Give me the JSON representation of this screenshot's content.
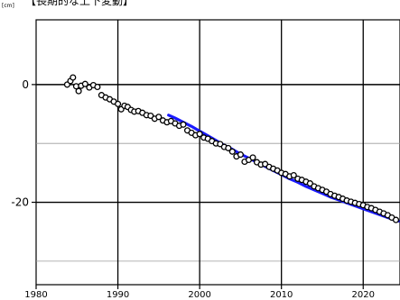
{
  "chart_data": {
    "type": "scatter",
    "title": "【長期的な上下変動】",
    "ylabel": "[cm]",
    "xlim": [
      1980,
      2024.5
    ],
    "ylim": [
      -34,
      11
    ],
    "x_ticks": [
      1980,
      1990,
      2000,
      2010,
      2020
    ],
    "y_ticks": [
      0,
      -20
    ],
    "minor_y_grid": [
      -10,
      -30
    ],
    "grid": true,
    "series": [
      {
        "kind": "markers",
        "color": "#000000",
        "points": [
          [
            1983.8,
            0
          ],
          [
            1984.2,
            0.6
          ],
          [
            1984.5,
            1.2
          ],
          [
            1984.9,
            -0.3
          ],
          [
            1985.2,
            -1.1
          ],
          [
            1985.5,
            -0.2
          ],
          [
            1986.0,
            0.1
          ],
          [
            1986.5,
            -0.5
          ],
          [
            1987.0,
            -0.1
          ],
          [
            1987.5,
            -0.4
          ],
          [
            1988.0,
            -1.8
          ],
          [
            1988.5,
            -2.2
          ],
          [
            1989.0,
            -2.5
          ],
          [
            1989.5,
            -2.9
          ],
          [
            1990.0,
            -3.3
          ],
          [
            1990.4,
            -4.2
          ],
          [
            1990.8,
            -3.6
          ],
          [
            1991.2,
            -3.8
          ],
          [
            1991.6,
            -4.3
          ],
          [
            1992.0,
            -4.6
          ],
          [
            1992.5,
            -4.5
          ],
          [
            1993.0,
            -4.8
          ],
          [
            1993.5,
            -5.2
          ],
          [
            1994.0,
            -5.3
          ],
          [
            1994.5,
            -5.8
          ],
          [
            1995.0,
            -5.5
          ],
          [
            1995.5,
            -6.1
          ],
          [
            1996.0,
            -6.4
          ],
          [
            1996.5,
            -6.2
          ],
          [
            1997.0,
            -6.6
          ],
          [
            1997.5,
            -7.0
          ],
          [
            1998.0,
            -6.8
          ],
          [
            1998.5,
            -7.8
          ],
          [
            1999.0,
            -8.2
          ],
          [
            1999.5,
            -8.6
          ],
          [
            2000.0,
            -8.4
          ],
          [
            2000.5,
            -9.0
          ],
          [
            2001.0,
            -9.2
          ],
          [
            2001.5,
            -9.6
          ],
          [
            2002.0,
            -10.0
          ],
          [
            2002.5,
            -10.1
          ],
          [
            2003.0,
            -10.6
          ],
          [
            2003.5,
            -10.8
          ],
          [
            2004.0,
            -11.4
          ],
          [
            2004.5,
            -12.2
          ],
          [
            2005.0,
            -11.9
          ],
          [
            2005.5,
            -13.1
          ],
          [
            2006.0,
            -12.8
          ],
          [
            2006.5,
            -12.4
          ],
          [
            2007.0,
            -13.2
          ],
          [
            2007.5,
            -13.6
          ],
          [
            2008.0,
            -13.5
          ],
          [
            2008.5,
            -14.0
          ],
          [
            2009.0,
            -14.3
          ],
          [
            2009.5,
            -14.6
          ],
          [
            2010.0,
            -15.0
          ],
          [
            2010.5,
            -15.2
          ],
          [
            2011.0,
            -15.6
          ],
          [
            2011.5,
            -15.4
          ],
          [
            2012.0,
            -16.0
          ],
          [
            2012.5,
            -16.2
          ],
          [
            2013.0,
            -16.5
          ],
          [
            2013.5,
            -16.8
          ],
          [
            2014.0,
            -17.3
          ],
          [
            2014.5,
            -17.6
          ],
          [
            2015.0,
            -17.9
          ],
          [
            2015.5,
            -18.2
          ],
          [
            2016.0,
            -18.6
          ],
          [
            2016.5,
            -18.9
          ],
          [
            2017.0,
            -19.1
          ],
          [
            2017.5,
            -19.4
          ],
          [
            2018.0,
            -19.7
          ],
          [
            2018.5,
            -19.9
          ],
          [
            2019.0,
            -20.1
          ],
          [
            2019.5,
            -20.3
          ],
          [
            2020.0,
            -20.5
          ],
          [
            2020.5,
            -20.8
          ],
          [
            2021.0,
            -21.0
          ],
          [
            2021.5,
            -21.3
          ],
          [
            2022.0,
            -21.6
          ],
          [
            2022.5,
            -21.9
          ],
          [
            2023.0,
            -22.2
          ],
          [
            2023.5,
            -22.6
          ],
          [
            2024.0,
            -23.0
          ]
        ]
      },
      {
        "kind": "line",
        "color": "#1a1aff",
        "points": [
          [
            1996.2,
            -5.2
          ],
          [
            1997.0,
            -5.7
          ],
          [
            1998.0,
            -6.4
          ],
          [
            1999.0,
            -7.1
          ],
          [
            2000.0,
            -7.9
          ],
          [
            2001.0,
            -8.7
          ],
          [
            2002.0,
            -9.5
          ],
          [
            2003.0,
            -10.3
          ],
          [
            2004.0,
            -11.0
          ],
          [
            2005.0,
            -11.8
          ],
          [
            2006.0,
            -12.5
          ],
          [
            2007.0,
            -13.2
          ],
          [
            2008.0,
            -13.9
          ],
          [
            2009.0,
            -14.6
          ],
          [
            2010.0,
            -15.3
          ],
          [
            2011.0,
            -16.0
          ],
          [
            2012.0,
            -16.6
          ],
          [
            2013.0,
            -17.3
          ],
          [
            2014.0,
            -17.9
          ],
          [
            2015.0,
            -18.5
          ],
          [
            2016.0,
            -19.1
          ],
          [
            2017.0,
            -19.6
          ],
          [
            2018.0,
            -20.1
          ],
          [
            2019.0,
            -20.6
          ],
          [
            2020.0,
            -21.1
          ],
          [
            2021.0,
            -21.6
          ],
          [
            2022.0,
            -22.1
          ],
          [
            2023.0,
            -22.6
          ],
          [
            2024.3,
            -23.2
          ]
        ]
      }
    ]
  }
}
